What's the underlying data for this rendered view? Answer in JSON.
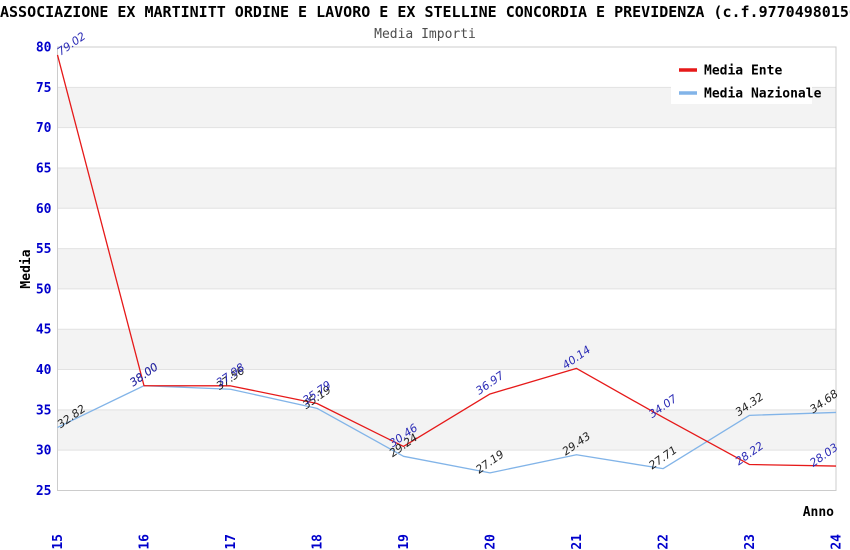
{
  "header": {
    "title": "ASSOCIAZIONE EX MARTINITT ORDINE E LAVORO E EX STELLINE CONCORDIA E PREVIDENZA (c.f.97704980156)",
    "subtitle": "Media Importi"
  },
  "axes": {
    "y_label": "Media",
    "x_label": "Anno"
  },
  "colors": {
    "nazionale_line": "#82b4e8",
    "ente_line": "#e61919",
    "nazionale_point_label": "#222222",
    "ente_point_label": "#2a2ab5",
    "tick_label": "#0000cc",
    "band_fill": "#f3f3f3",
    "gridline": "#e2e2e2",
    "plot_border": "#cccccc",
    "legend_background": "#ffffff"
  },
  "chart_data": {
    "type": "line",
    "title": "Media Importi",
    "xlabel": "Anno",
    "ylabel": "Media",
    "categories": [
      "2015",
      "2016",
      "2017",
      "2018",
      "2019",
      "2020",
      "2021",
      "2022",
      "2023",
      "2024"
    ],
    "series": [
      {
        "name": "Media Nazionale",
        "color": "#82b4e8",
        "label_color": "#222222",
        "values": [
          32.82,
          38.0,
          37.56,
          35.19,
          29.24,
          27.19,
          29.43,
          27.71,
          34.32,
          34.68
        ]
      },
      {
        "name": "Media Ente",
        "color": "#e61919",
        "label_color": "#2a2ab5",
        "values": [
          79.02,
          38.0,
          37.98,
          35.79,
          30.46,
          36.97,
          40.14,
          34.07,
          28.22,
          28.03
        ]
      }
    ],
    "ylim": [
      25,
      80
    ],
    "ytick_step": 5,
    "grid": "horizontal, alternating shaded bands every 5 units",
    "legend_position": "top-right",
    "point_labels": "each point labeled with value, rotated, italic"
  }
}
